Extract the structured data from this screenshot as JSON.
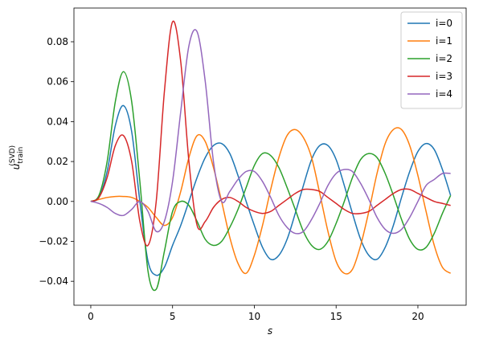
{
  "chart_data": {
    "type": "line",
    "xlabel": "s",
    "ylabel": {
      "base": "u",
      "sub": "train",
      "sup": "(SVD)"
    },
    "x": [
      0,
      0.5,
      1,
      1.5,
      2,
      2.5,
      3,
      3.5,
      4,
      4.5,
      5,
      5.5,
      6,
      6.5,
      7,
      7.5,
      8,
      8.5,
      9,
      9.5,
      10,
      10.5,
      11,
      11.5,
      12,
      12.5,
      13,
      13.5,
      14,
      14.5,
      15,
      15.5,
      16,
      16.5,
      17,
      17.5,
      18,
      18.5,
      19,
      19.5,
      20,
      20.5,
      21,
      21.5,
      22
    ],
    "series": [
      {
        "name": "i=0",
        "color": "#1f77b4",
        "values": [
          0,
          0.002,
          0.015,
          0.038,
          0.048,
          0.035,
          0.0,
          -0.03,
          -0.037,
          -0.033,
          -0.022,
          -0.012,
          0.0,
          0.012,
          0.022,
          0.028,
          0.029,
          0.024,
          0.013,
          0.0,
          -0.012,
          -0.023,
          -0.029,
          -0.027,
          -0.019,
          -0.006,
          0.008,
          0.021,
          0.028,
          0.028,
          0.021,
          0.008,
          -0.006,
          -0.019,
          -0.027,
          -0.029,
          -0.023,
          -0.012,
          0.002,
          0.015,
          0.025,
          0.029,
          0.026,
          0.016,
          0.003
        ]
      },
      {
        "name": "i=1",
        "color": "#ff7f0e",
        "values": [
          0,
          0.001,
          0.002,
          0.0025,
          0.0025,
          0.002,
          0.0,
          -0.003,
          -0.008,
          -0.012,
          -0.008,
          0.005,
          0.022,
          0.033,
          0.03,
          0.017,
          0.0,
          -0.018,
          -0.031,
          -0.036,
          -0.027,
          -0.012,
          0.006,
          0.022,
          0.033,
          0.036,
          0.032,
          0.022,
          0.004,
          -0.015,
          -0.03,
          -0.036,
          -0.034,
          -0.022,
          -0.005,
          0.014,
          0.029,
          0.036,
          0.036,
          0.028,
          0.013,
          -0.005,
          -0.022,
          -0.033,
          -0.036
        ]
      },
      {
        "name": "i=2",
        "color": "#2ca02c",
        "values": [
          0,
          0.003,
          0.02,
          0.05,
          0.065,
          0.05,
          0.01,
          -0.035,
          -0.044,
          -0.025,
          -0.005,
          0.0,
          -0.002,
          -0.01,
          -0.019,
          -0.022,
          -0.02,
          -0.013,
          -0.004,
          0.007,
          0.018,
          0.024,
          0.023,
          0.017,
          0.007,
          -0.004,
          -0.015,
          -0.022,
          -0.024,
          -0.02,
          -0.011,
          0.0,
          0.012,
          0.021,
          0.024,
          0.022,
          0.014,
          0.003,
          -0.009,
          -0.019,
          -0.024,
          -0.023,
          -0.016,
          -0.006,
          0.003
        ]
      },
      {
        "name": "i=3",
        "color": "#d62728",
        "values": [
          0,
          0.002,
          0.012,
          0.028,
          0.033,
          0.02,
          -0.01,
          -0.022,
          0.0,
          0.055,
          0.09,
          0.07,
          0.02,
          -0.012,
          -0.01,
          -0.003,
          0.001,
          0.002,
          0.0,
          -0.003,
          -0.005,
          -0.006,
          -0.005,
          -0.002,
          0.001,
          0.004,
          0.006,
          0.006,
          0.005,
          0.002,
          -0.001,
          -0.004,
          -0.006,
          -0.006,
          -0.005,
          -0.002,
          0.001,
          0.004,
          0.006,
          0.006,
          0.004,
          0.002,
          0.0,
          -0.001,
          -0.002
        ]
      },
      {
        "name": "i=4",
        "color": "#9467bd",
        "values": [
          0,
          -0.001,
          -0.003,
          -0.006,
          -0.007,
          -0.004,
          0.0,
          -0.005,
          -0.015,
          -0.01,
          0.01,
          0.045,
          0.078,
          0.085,
          0.06,
          0.02,
          0.0,
          0.005,
          0.011,
          0.015,
          0.015,
          0.01,
          0.002,
          -0.007,
          -0.013,
          -0.016,
          -0.015,
          -0.009,
          -0.001,
          0.008,
          0.014,
          0.016,
          0.015,
          0.009,
          0.001,
          -0.008,
          -0.014,
          -0.016,
          -0.014,
          -0.008,
          0.0,
          0.008,
          0.011,
          0.014,
          0.014
        ]
      }
    ],
    "xlim": [
      -1.03,
      22.95
    ],
    "ylim": [
      -0.052,
      0.0969
    ],
    "xticks": [
      0,
      5,
      10,
      15,
      20
    ],
    "yticks": [
      {
        "value": -0.04,
        "label": "−0.04"
      },
      {
        "value": -0.02,
        "label": "−0.02"
      },
      {
        "value": 0,
        "label": "0.00"
      },
      {
        "value": 0.02,
        "label": "0.02"
      },
      {
        "value": 0.04,
        "label": "0.04"
      },
      {
        "value": 0.06,
        "label": "0.06"
      },
      {
        "value": 0.08,
        "label": "0.08"
      }
    ],
    "grid": false,
    "legend": "upper right"
  }
}
